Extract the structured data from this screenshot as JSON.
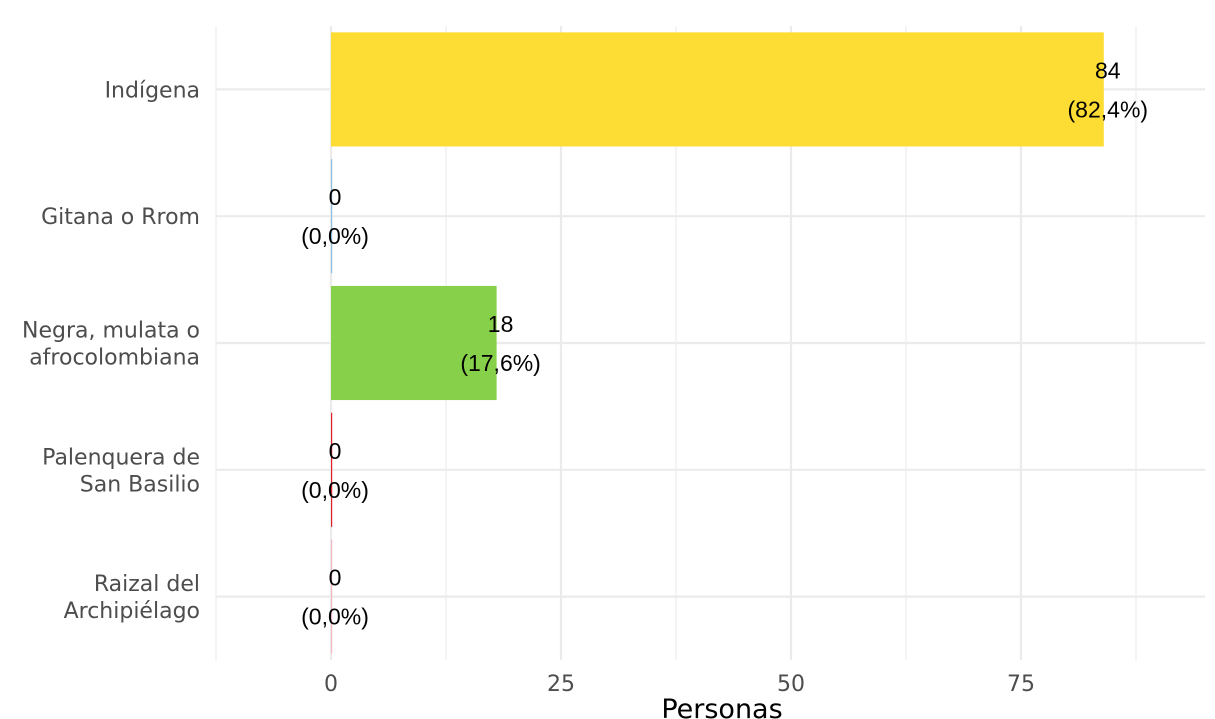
{
  "chart_data": {
    "type": "bar",
    "orientation": "horizontal",
    "categories": [
      [
        "Indígena"
      ],
      [
        "Gitana o Rrom"
      ],
      [
        "Negra, mulata o",
        "afrocolombiana"
      ],
      [
        "Palenquera de",
        "San Basilio"
      ],
      [
        "Raizal del",
        "Archipiélago"
      ]
    ],
    "values": [
      84,
      0,
      18,
      0,
      0
    ],
    "value_labels": [
      "84",
      "0",
      "18",
      "0",
      "0"
    ],
    "percent_labels": [
      "(82,4%)",
      "(0,0%)",
      "(17,6%)",
      "(0,0%)",
      "(0,0%)"
    ],
    "colors": [
      "#FDDD33",
      "#8FBFE0",
      "#86D04A",
      "#E2222B",
      "#F4B8C4"
    ],
    "title": "",
    "xlabel": "Personas",
    "ylabel": "",
    "xlim": [
      -12.5,
      95
    ],
    "x_ticks": [
      0,
      25,
      50,
      75
    ],
    "x_tick_labels": [
      "0",
      "25",
      "50",
      "75"
    ],
    "x_minor_ticks": [
      -12.5,
      12.5,
      37.5,
      62.5,
      87.5
    ],
    "grid": true,
    "legend": "none"
  }
}
